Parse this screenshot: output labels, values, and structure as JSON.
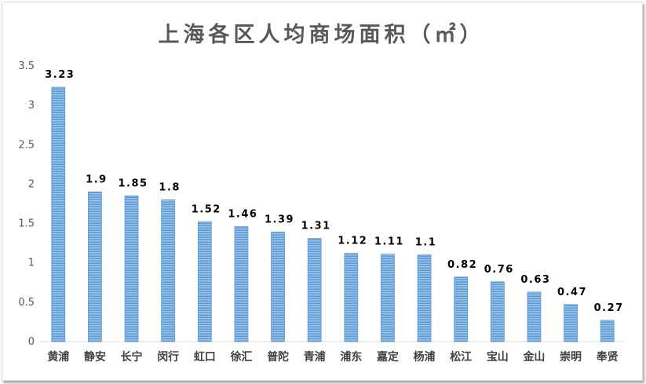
{
  "chart_data": {
    "type": "bar",
    "title": "上海各区人均商场面积（㎡）",
    "categories": [
      "黄浦",
      "静安",
      "长宁",
      "闵行",
      "虹口",
      "徐汇",
      "普陀",
      "青浦",
      "浦东",
      "嘉定",
      "杨浦",
      "松江",
      "宝山",
      "金山",
      "崇明",
      "奉贤"
    ],
    "values": [
      3.23,
      1.9,
      1.85,
      1.8,
      1.52,
      1.46,
      1.39,
      1.31,
      1.12,
      1.11,
      1.1,
      0.82,
      0.76,
      0.63,
      0.47,
      0.27
    ],
    "value_labels": [
      "3.23",
      "1.9",
      "1.85",
      "1.8",
      "1.52",
      "1.46",
      "1.39",
      "1.31",
      "1.12",
      "1.11",
      "1.1",
      "0.82",
      "0.76",
      "0.63",
      "0.47",
      "0.27"
    ],
    "ylim": [
      0,
      3.5
    ],
    "yticks": [
      "0",
      "0.5",
      "1",
      "1.5",
      "2",
      "2.5",
      "3",
      "3.5"
    ],
    "ytick_values": [
      0,
      0.5,
      1,
      1.5,
      2,
      2.5,
      3,
      3.5
    ],
    "xlabel": "",
    "ylabel": "",
    "grid": false,
    "legend": "none",
    "bar_color": "#5b9bd5",
    "bar_stripe_color": "#9dc3e6"
  }
}
